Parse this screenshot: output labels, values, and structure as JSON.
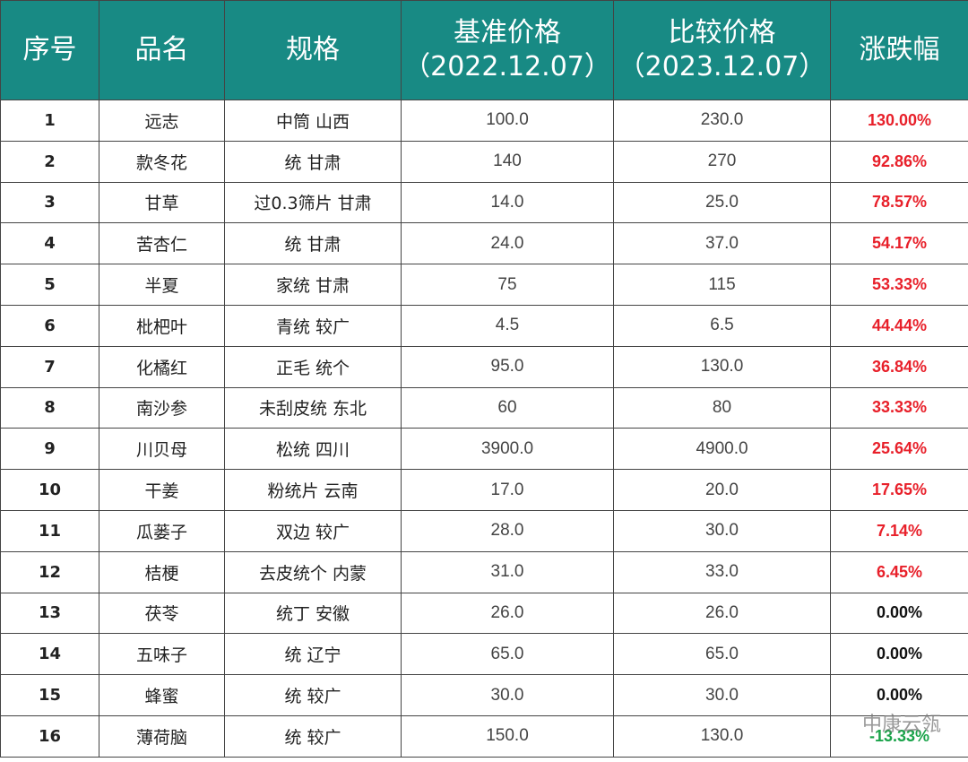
{
  "table": {
    "headers": [
      {
        "lines": [
          "序号"
        ]
      },
      {
        "lines": [
          "品名"
        ]
      },
      {
        "lines": [
          "规格"
        ]
      },
      {
        "lines": [
          "基准价格",
          "（2022.12.07）"
        ]
      },
      {
        "lines": [
          "比较价格",
          "（2023.12.07）"
        ]
      },
      {
        "lines": [
          "涨跌幅"
        ]
      }
    ],
    "rows": [
      [
        "1",
        "远志",
        "中筒 山西",
        "100.0",
        "230.0",
        "130.00%"
      ],
      [
        "2",
        "款冬花",
        "统 甘肃",
        "140",
        "270",
        "92.86%"
      ],
      [
        "3",
        "甘草",
        "过0.3筛片 甘肃",
        "14.0",
        "25.0",
        "78.57%"
      ],
      [
        "4",
        "苦杏仁",
        "统 甘肃",
        "24.0",
        "37.0",
        "54.17%"
      ],
      [
        "5",
        "半夏",
        "家统 甘肃",
        "75",
        "115",
        "53.33%"
      ],
      [
        "6",
        "枇杷叶",
        "青统 较广",
        "4.5",
        "6.5",
        "44.44%"
      ],
      [
        "7",
        "化橘红",
        "正毛 统个",
        "95.0",
        "130.0",
        "36.84%"
      ],
      [
        "8",
        "南沙参",
        "未刮皮统 东北",
        "60",
        "80",
        "33.33%"
      ],
      [
        "9",
        "川贝母",
        "松统 四川",
        "3900.0",
        "4900.0",
        "25.64%"
      ],
      [
        "10",
        "干姜",
        "粉统片 云南",
        "17.0",
        "20.0",
        "17.65%"
      ],
      [
        "11",
        "瓜蒌子",
        "双边 较广",
        "28.0",
        "30.0",
        "7.14%"
      ],
      [
        "12",
        "桔梗",
        "去皮统个 内蒙",
        "31.0",
        "33.0",
        "6.45%"
      ],
      [
        "13",
        "茯苓",
        "统丁 安徽",
        "26.0",
        "26.0",
        "0.00%"
      ],
      [
        "14",
        "五味子",
        "统 辽宁",
        "65.0",
        "65.0",
        "0.00%"
      ],
      [
        "15",
        "蜂蜜",
        "统 较广",
        "30.0",
        "30.0",
        "0.00%"
      ],
      [
        "16",
        "薄荷脑",
        "统 较广",
        "150.0",
        "130.0",
        "-13.33%"
      ]
    ],
    "change_colors": [
      "#e8202a",
      "#e8202a",
      "#e8202a",
      "#e8202a",
      "#e8202a",
      "#e8202a",
      "#e8202a",
      "#e8202a",
      "#e8202a",
      "#e8202a",
      "#e8202a",
      "#e8202a",
      "#111111",
      "#111111",
      "#111111",
      "#1aa34a"
    ],
    "header_color": "#188a84"
  },
  "watermark": "中康云瓴"
}
